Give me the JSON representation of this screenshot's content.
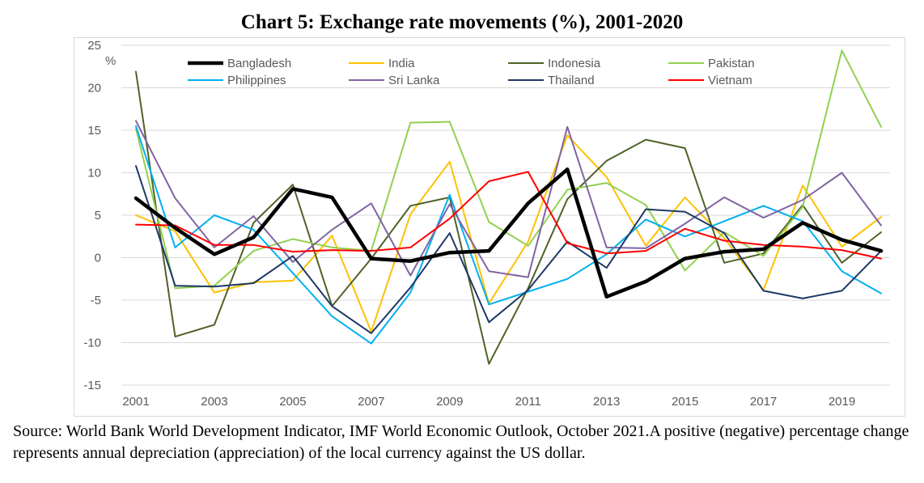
{
  "chart_data": {
    "type": "line",
    "title": "Chart 5: Exchange rate movements (%), 2001-2020",
    "ylabel": "%",
    "xlabel": "",
    "ylim": [
      -15,
      25
    ],
    "yticks": [
      25,
      20,
      15,
      10,
      5,
      0,
      -5,
      -10,
      -15
    ],
    "xticks": [
      2001,
      2003,
      2005,
      2007,
      2009,
      2011,
      2013,
      2015,
      2017,
      2019
    ],
    "x": [
      2001,
      2002,
      2003,
      2004,
      2005,
      2006,
      2007,
      2008,
      2009,
      2010,
      2011,
      2012,
      2013,
      2014,
      2015,
      2016,
      2017,
      2018,
      2019,
      2020
    ],
    "grid": "horizontal",
    "legend_position": "top",
    "series": [
      {
        "name": "Bangladesh",
        "color": "#000000",
        "width": 4.5,
        "values": [
          7.0,
          3.5,
          0.4,
          2.4,
          8.1,
          7.1,
          -0.1,
          -0.4,
          0.6,
          0.8,
          6.4,
          10.4,
          -4.6,
          -2.8,
          -0.1,
          0.7,
          1.0,
          4.1,
          2.1,
          0.8
        ]
      },
      {
        "name": "India",
        "color": "#FFC000",
        "width": 2,
        "values": [
          5.0,
          3.1,
          -4.1,
          -2.9,
          -2.7,
          2.6,
          -8.7,
          5.1,
          11.3,
          -5.4,
          1.9,
          14.4,
          9.5,
          1.4,
          7.1,
          2.3,
          -3.8,
          8.5,
          1.3,
          4.8
        ]
      },
      {
        "name": "Indonesia",
        "color": "#4F6228",
        "width": 2,
        "values": [
          21.9,
          -9.3,
          -7.9,
          4.1,
          8.6,
          -5.7,
          -0.1,
          6.1,
          7.1,
          -12.5,
          -3.6,
          6.9,
          11.4,
          13.9,
          12.9,
          -0.6,
          0.5,
          6.2,
          -0.6,
          3.0
        ]
      },
      {
        "name": "Pakistan",
        "color": "#92D050",
        "width": 2,
        "values": [
          15.2,
          -3.6,
          -3.3,
          0.8,
          2.2,
          1.2,
          0.8,
          15.9,
          16.0,
          4.2,
          1.4,
          8.0,
          8.8,
          6.2,
          -1.5,
          3.0,
          0.2,
          6.0,
          24.4,
          15.4
        ]
      },
      {
        "name": "Philippines",
        "color": "#00B0F0",
        "width": 2,
        "values": [
          15.5,
          1.2,
          5.0,
          3.3,
          -1.8,
          -6.9,
          -10.1,
          -4.1,
          7.4,
          -5.5,
          -4.0,
          -2.5,
          0.4,
          4.5,
          2.5,
          4.3,
          6.1,
          4.3,
          -1.6,
          -4.2
        ]
      },
      {
        "name": "Sri Lanka",
        "color": "#8064A2",
        "width": 2,
        "values": [
          16.1,
          7.0,
          1.2,
          4.9,
          -0.5,
          3.3,
          6.4,
          -2.1,
          6.3,
          -1.6,
          -2.3,
          15.4,
          1.2,
          1.1,
          4.0,
          7.1,
          4.7,
          6.8,
          10.0,
          3.8
        ]
      },
      {
        "name": "Thailand",
        "color": "#1F3864",
        "width": 2,
        "values": [
          10.8,
          -3.3,
          -3.4,
          -3.0,
          0.2,
          -5.7,
          -8.9,
          -3.5,
          2.9,
          -7.6,
          -3.8,
          1.9,
          -1.2,
          5.7,
          5.4,
          2.9,
          -3.9,
          -4.8,
          -3.9,
          0.8
        ]
      },
      {
        "name": "Vietnam",
        "color": "#FF0000",
        "width": 2,
        "values": [
          3.9,
          3.8,
          1.5,
          1.5,
          0.7,
          0.9,
          0.8,
          1.2,
          4.6,
          9.0,
          10.1,
          1.7,
          0.5,
          0.8,
          3.4,
          2.0,
          1.5,
          1.3,
          0.9,
          -0.1
        ]
      }
    ]
  },
  "source": "Source: World Bank World Development Indicator, IMF World Economic Outlook, October 2021.A positive (negative) percentage change represents annual depreciation (appreciation) of the local currency against the US dollar."
}
